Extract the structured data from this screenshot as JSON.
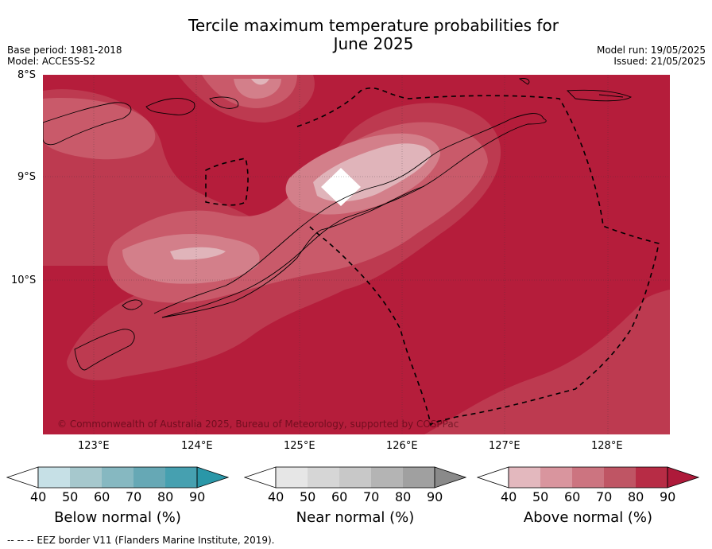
{
  "title_line1": "Tercile maximum temperature probabilities for",
  "title_line2": "June 2025",
  "meta_left": {
    "base_period": "Base period: 1981-2018",
    "model": "Model: ACCESS-S2"
  },
  "meta_right": {
    "model_run": "Model run: 19/05/2025",
    "issued": "Issued: 21/05/2025"
  },
  "copyright": "© Commonwealth of Australia 2025, Bureau of Meteorology, supported by COSPPac",
  "footer": "--  --  -- EEZ border V11 (Flanders Marine Institute, 2019).",
  "lat_ticks": [
    "8°S",
    "9°S",
    "10°S"
  ],
  "lon_ticks": [
    "123°E",
    "124°E",
    "125°E",
    "126°E",
    "127°E",
    "128°E"
  ],
  "colorbars": [
    {
      "label": "Below normal (%)",
      "ticks": [
        "40",
        "50",
        "60",
        "70",
        "80",
        "90"
      ],
      "colors": [
        "#ffffff",
        "#c6e0e6",
        "#a6c8cd",
        "#86b8c1",
        "#66a8b5",
        "#46a0b0",
        "#2a97a8"
      ]
    },
    {
      "label": "Near normal (%)",
      "ticks": [
        "40",
        "50",
        "60",
        "70",
        "80",
        "90"
      ],
      "colors": [
        "#ffffff",
        "#e6e6e6",
        "#d6d6d6",
        "#c8c8c8",
        "#b4b4b4",
        "#a0a0a0",
        "#8a8a8a"
      ]
    },
    {
      "label": "Above normal (%)",
      "ticks": [
        "40",
        "50",
        "60",
        "70",
        "80",
        "90"
      ],
      "colors": [
        "#ffffff",
        "#e3b8be",
        "#d9959e",
        "#cc7480",
        "#bf5564",
        "#b72c45",
        "#ae1a3a"
      ]
    }
  ],
  "map_colors": {
    "base": "#b51d3b",
    "c80": "#bd3a50",
    "c70": "#c95a6a",
    "c60": "#d37f8a",
    "c50": "#e0b4ba",
    "white": "#ffffff"
  }
}
